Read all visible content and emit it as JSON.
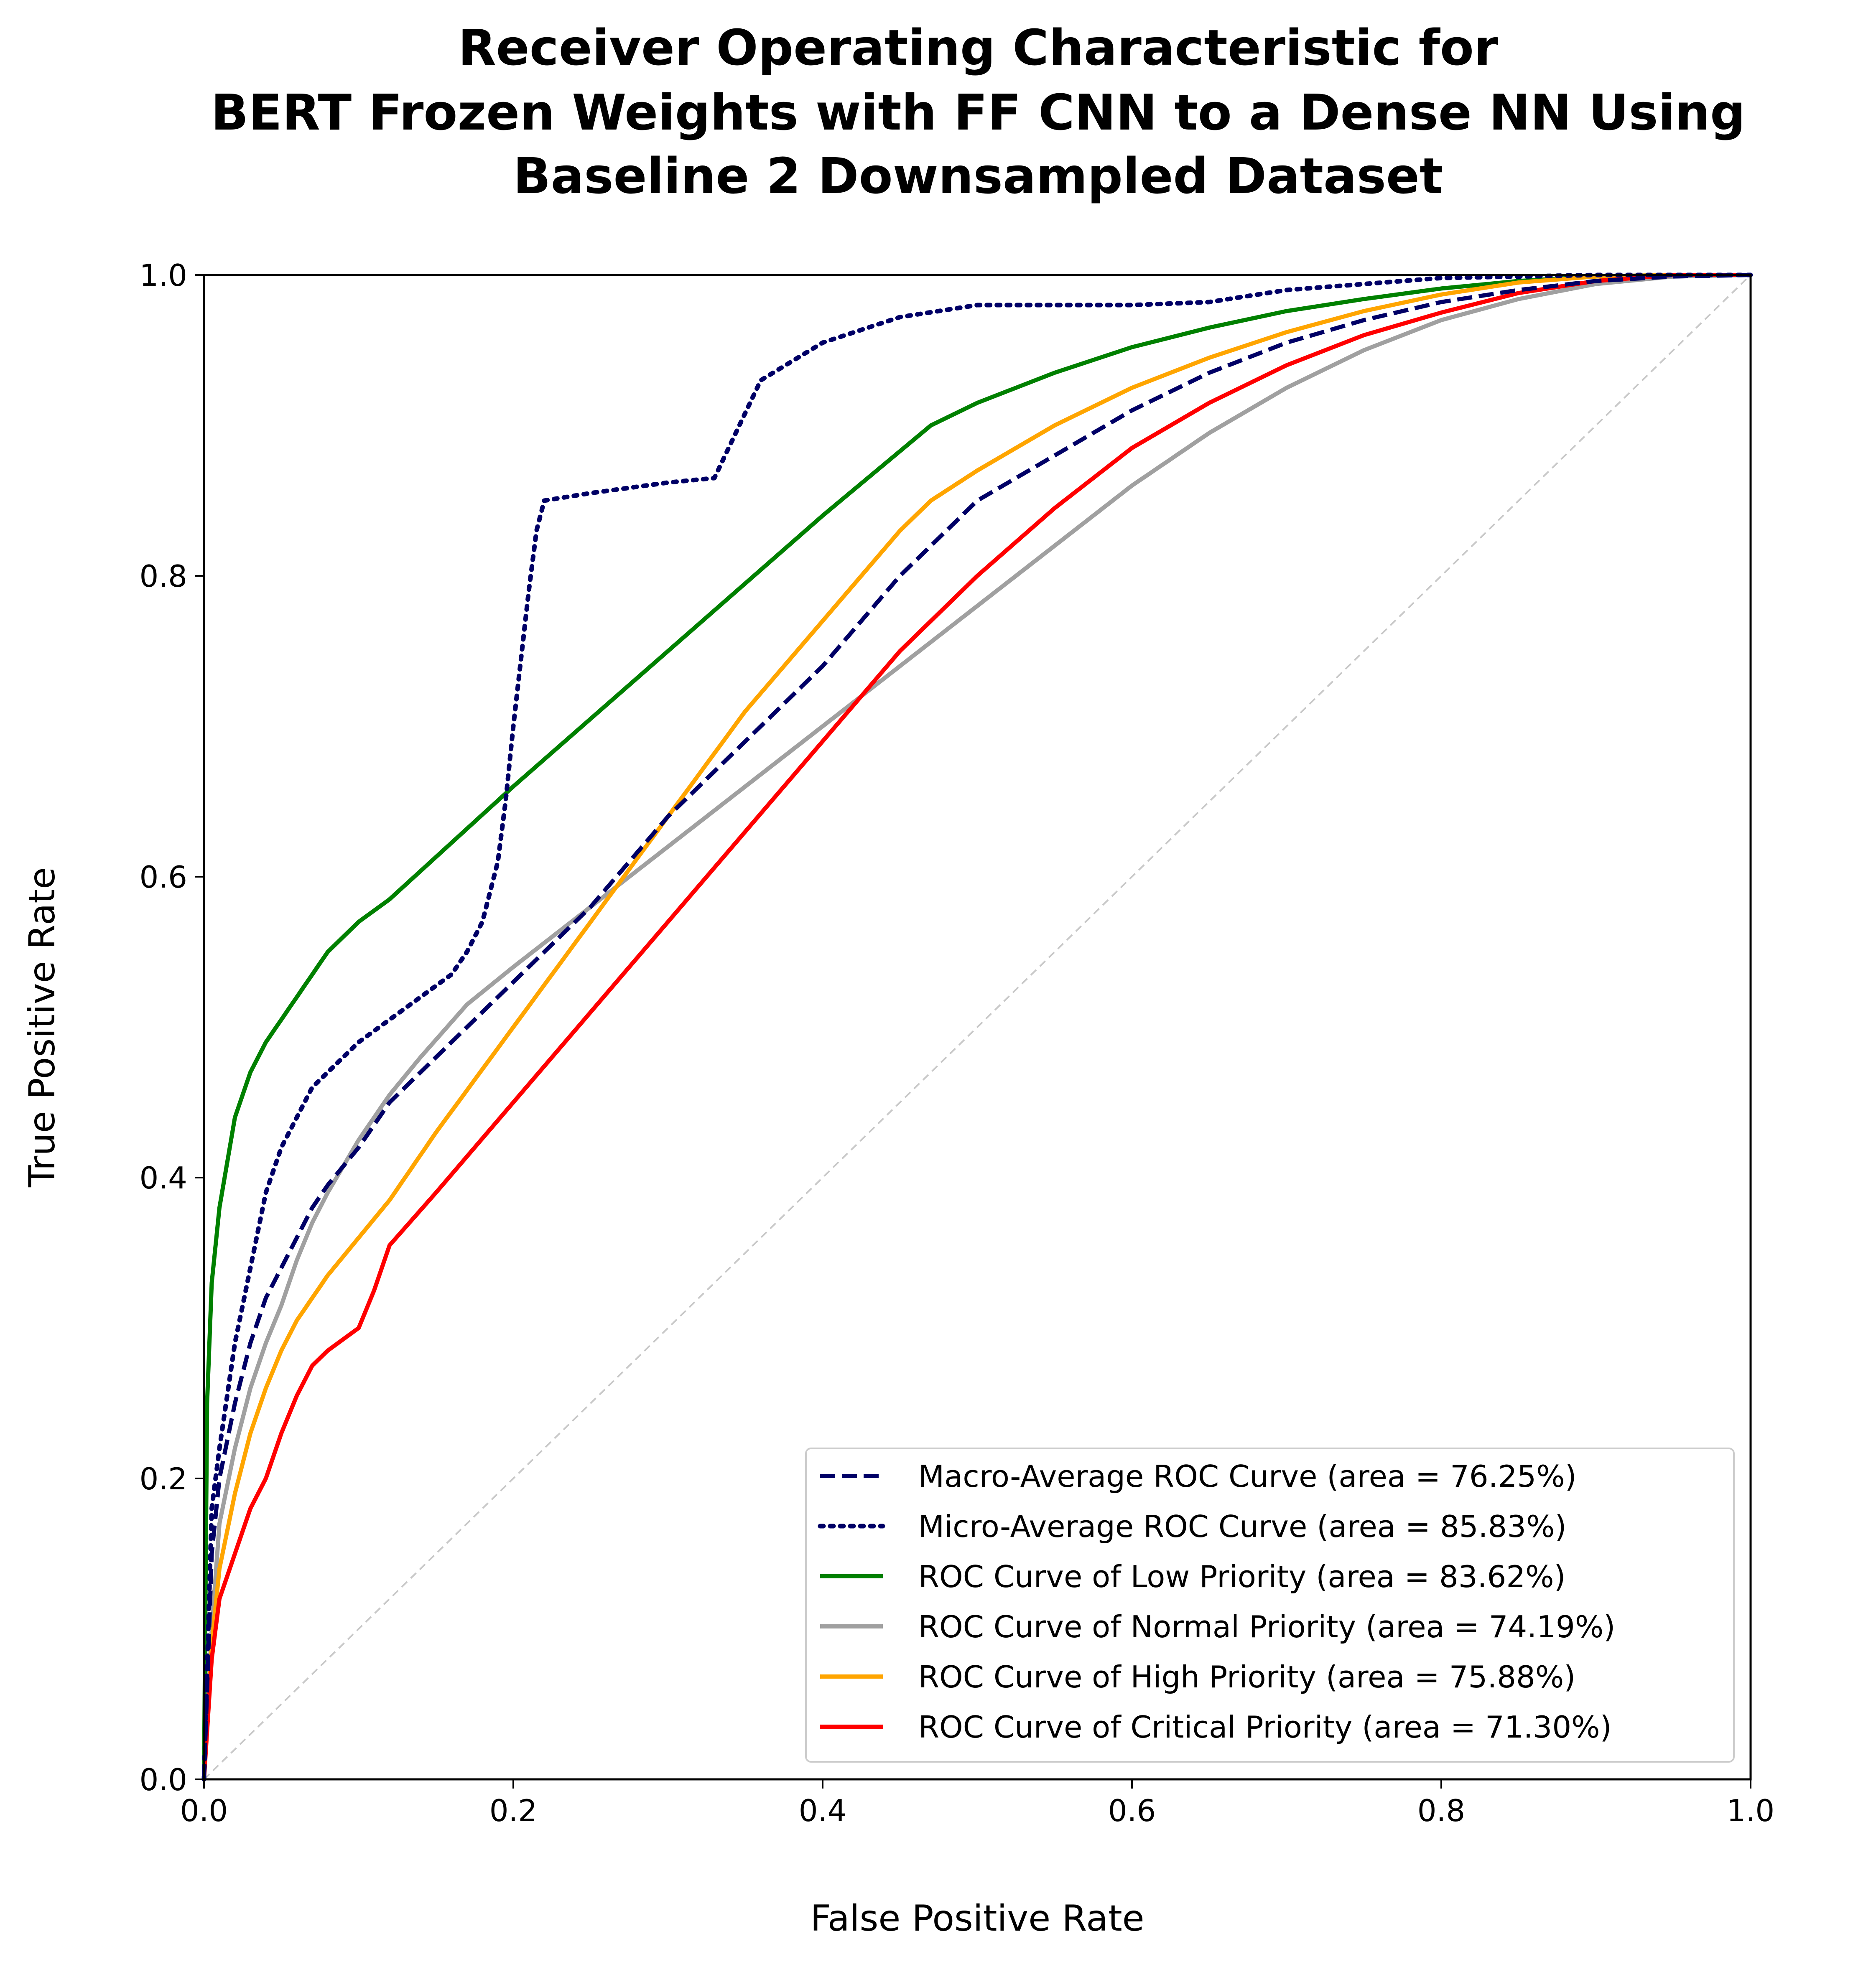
{
  "chart_data": {
    "type": "line",
    "title_lines": [
      "Receiver Operating Characteristic for",
      "BERT Frozen Weights with FF CNN to a Dense NN Using",
      "Baseline 2 Downsampled Dataset"
    ],
    "xlabel": "False Positive Rate",
    "ylabel": "True Positive Rate",
    "xlim": [
      0.0,
      1.0
    ],
    "ylim": [
      0.0,
      1.0
    ],
    "xticks": [
      "0.0",
      "0.2",
      "0.4",
      "0.6",
      "0.8",
      "1.0"
    ],
    "yticks": [
      "0.0",
      "0.2",
      "0.4",
      "0.6",
      "0.8",
      "1.0"
    ],
    "grid": false,
    "legend_position": "lower-right",
    "series": [
      {
        "name": "Macro-Average ROC Curve (area = 76.25%)",
        "color": "#000066",
        "style": "dashed",
        "x": [
          0.0,
          0.005,
          0.01,
          0.02,
          0.03,
          0.04,
          0.05,
          0.06,
          0.07,
          0.08,
          0.1,
          0.12,
          0.15,
          0.18,
          0.2,
          0.25,
          0.3,
          0.35,
          0.4,
          0.45,
          0.5,
          0.55,
          0.6,
          0.65,
          0.7,
          0.75,
          0.8,
          0.85,
          0.9,
          0.95,
          1.0
        ],
        "y": [
          0.0,
          0.15,
          0.2,
          0.25,
          0.29,
          0.32,
          0.34,
          0.36,
          0.38,
          0.395,
          0.42,
          0.45,
          0.48,
          0.51,
          0.53,
          0.58,
          0.64,
          0.69,
          0.74,
          0.8,
          0.85,
          0.88,
          0.91,
          0.935,
          0.955,
          0.97,
          0.982,
          0.99,
          0.996,
          0.999,
          1.0
        ]
      },
      {
        "name": "Micro-Average ROC Curve (area = 85.83%)",
        "color": "#000066",
        "style": "dotted",
        "x": [
          0.0,
          0.005,
          0.01,
          0.02,
          0.03,
          0.04,
          0.05,
          0.06,
          0.07,
          0.08,
          0.1,
          0.12,
          0.14,
          0.16,
          0.17,
          0.18,
          0.19,
          0.195,
          0.2,
          0.21,
          0.215,
          0.22,
          0.25,
          0.3,
          0.33,
          0.36,
          0.4,
          0.45,
          0.5,
          0.55,
          0.6,
          0.65,
          0.7,
          0.8,
          0.9,
          1.0
        ],
        "y": [
          0.0,
          0.18,
          0.22,
          0.29,
          0.34,
          0.39,
          0.42,
          0.44,
          0.46,
          0.47,
          0.49,
          0.505,
          0.52,
          0.535,
          0.55,
          0.57,
          0.61,
          0.65,
          0.7,
          0.79,
          0.83,
          0.85,
          0.855,
          0.862,
          0.865,
          0.93,
          0.955,
          0.972,
          0.98,
          0.98,
          0.98,
          0.982,
          0.99,
          0.998,
          1.0,
          1.0
        ]
      },
      {
        "name": "ROC Curve of Low Priority (area = 83.62%)",
        "color": "#008000",
        "style": "solid",
        "x": [
          0.0,
          0.002,
          0.005,
          0.01,
          0.015,
          0.02,
          0.03,
          0.04,
          0.05,
          0.06,
          0.07,
          0.08,
          0.1,
          0.12,
          0.2,
          0.3,
          0.4,
          0.47,
          0.5,
          0.55,
          0.6,
          0.65,
          0.7,
          0.75,
          0.8,
          0.85,
          0.9,
          0.95,
          1.0
        ],
        "y": [
          0.0,
          0.25,
          0.33,
          0.38,
          0.41,
          0.44,
          0.47,
          0.49,
          0.505,
          0.52,
          0.535,
          0.55,
          0.57,
          0.585,
          0.66,
          0.75,
          0.84,
          0.9,
          0.915,
          0.935,
          0.952,
          0.965,
          0.976,
          0.984,
          0.991,
          0.996,
          0.999,
          1.0,
          1.0
        ]
      },
      {
        "name": "ROC Curve of Normal Priority (area = 74.19%)",
        "color": "#a0a0a0",
        "style": "solid",
        "x": [
          0.0,
          0.005,
          0.01,
          0.02,
          0.03,
          0.04,
          0.05,
          0.06,
          0.07,
          0.08,
          0.1,
          0.12,
          0.14,
          0.17,
          0.2,
          0.25,
          0.3,
          0.35,
          0.4,
          0.45,
          0.5,
          0.55,
          0.6,
          0.65,
          0.7,
          0.75,
          0.8,
          0.85,
          0.9,
          0.95,
          1.0
        ],
        "y": [
          0.0,
          0.1,
          0.17,
          0.22,
          0.26,
          0.29,
          0.315,
          0.345,
          0.37,
          0.39,
          0.425,
          0.455,
          0.48,
          0.515,
          0.54,
          0.58,
          0.62,
          0.66,
          0.7,
          0.74,
          0.78,
          0.82,
          0.86,
          0.895,
          0.925,
          0.95,
          0.97,
          0.984,
          0.994,
          0.999,
          1.0
        ]
      },
      {
        "name": "ROC Curve of High Priority (area = 75.88%)",
        "color": "#ffa500",
        "style": "solid",
        "x": [
          0.0,
          0.005,
          0.01,
          0.02,
          0.03,
          0.04,
          0.05,
          0.06,
          0.07,
          0.08,
          0.1,
          0.12,
          0.15,
          0.2,
          0.25,
          0.3,
          0.35,
          0.4,
          0.45,
          0.47,
          0.5,
          0.55,
          0.6,
          0.65,
          0.7,
          0.75,
          0.8,
          0.85,
          0.9,
          0.95,
          1.0
        ],
        "y": [
          0.0,
          0.09,
          0.14,
          0.19,
          0.23,
          0.26,
          0.285,
          0.305,
          0.32,
          0.335,
          0.36,
          0.385,
          0.43,
          0.5,
          0.57,
          0.64,
          0.71,
          0.77,
          0.83,
          0.85,
          0.87,
          0.9,
          0.925,
          0.945,
          0.962,
          0.976,
          0.987,
          0.995,
          0.999,
          1.0,
          1.0
        ]
      },
      {
        "name": "ROC Curve of Critical Priority (area = 71.30%)",
        "color": "#ff0000",
        "style": "solid",
        "x": [
          0.0,
          0.005,
          0.01,
          0.02,
          0.03,
          0.04,
          0.05,
          0.06,
          0.07,
          0.08,
          0.1,
          0.11,
          0.12,
          0.15,
          0.2,
          0.25,
          0.3,
          0.35,
          0.4,
          0.45,
          0.48,
          0.5,
          0.55,
          0.6,
          0.65,
          0.7,
          0.75,
          0.8,
          0.85,
          0.9,
          0.95,
          1.0
        ],
        "y": [
          0.0,
          0.08,
          0.12,
          0.15,
          0.18,
          0.2,
          0.23,
          0.255,
          0.275,
          0.285,
          0.3,
          0.325,
          0.355,
          0.39,
          0.45,
          0.51,
          0.57,
          0.63,
          0.69,
          0.75,
          0.78,
          0.8,
          0.845,
          0.885,
          0.915,
          0.94,
          0.96,
          0.975,
          0.988,
          0.996,
          1.0,
          1.0
        ]
      }
    ],
    "reference_line": {
      "x": [
        0.0,
        1.0
      ],
      "y": [
        0.0,
        1.0
      ],
      "color": "#c8c8c8",
      "style": "dashed"
    }
  }
}
